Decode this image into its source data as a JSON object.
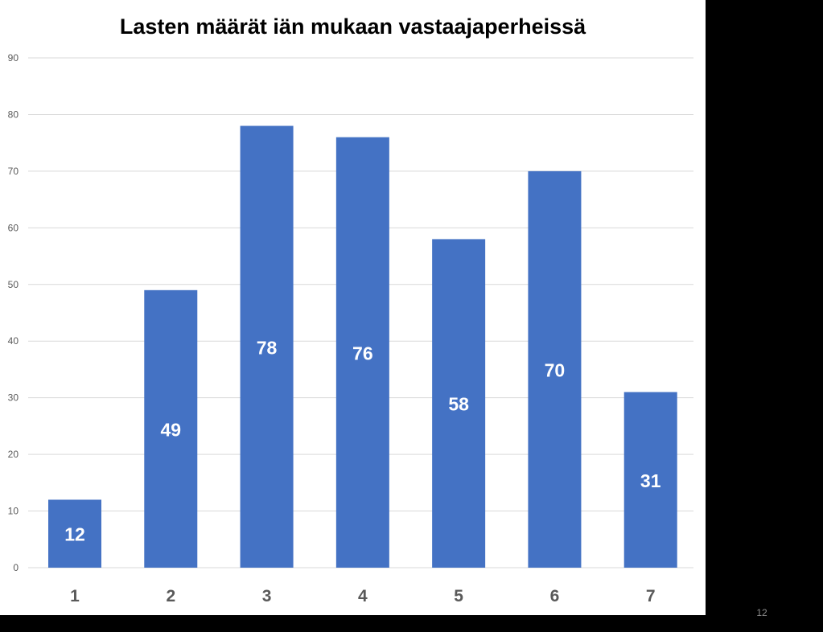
{
  "slide": {
    "page_number": "12"
  },
  "chart_data": {
    "type": "bar",
    "title": "Lasten määrät iän mukaan vastaajaperheissä",
    "categories": [
      "1",
      "2",
      "3",
      "4",
      "5",
      "6",
      "7"
    ],
    "values": [
      12,
      49,
      78,
      76,
      58,
      70,
      31
    ],
    "data_labels": [
      "12",
      "49",
      "78",
      "76",
      "58",
      "70",
      "31"
    ],
    "xlabel": "",
    "ylabel": "",
    "ylim": [
      0,
      90
    ],
    "yticks": [
      0,
      10,
      20,
      30,
      40,
      50,
      60,
      70,
      80,
      90
    ],
    "grid": true,
    "legend": "none",
    "colors": {
      "bar": "#4472c4",
      "grid": "#d9d9d9",
      "axis_text": "#595959",
      "data_label": "#ffffff"
    }
  }
}
